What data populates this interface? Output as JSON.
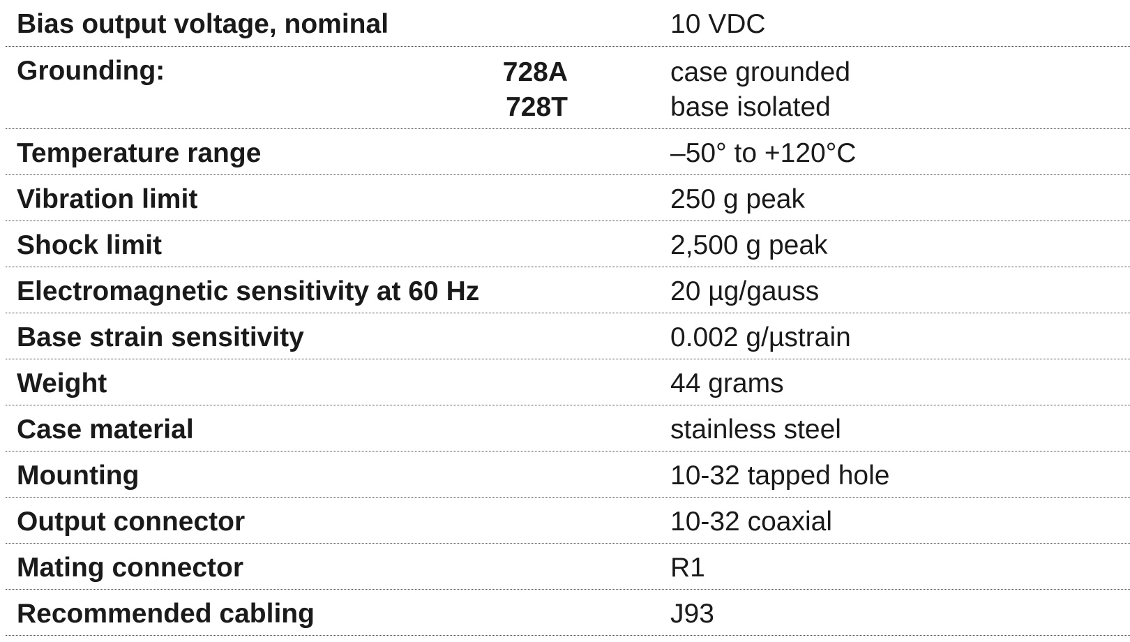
{
  "specs": {
    "rows": [
      {
        "label": "Bias output voltage, nominal",
        "value": "10 VDC"
      },
      {
        "label": "Grounding:",
        "models": [
          "728A",
          "728T"
        ],
        "values": [
          "case grounded",
          "base isolated"
        ]
      },
      {
        "label": "Temperature range",
        "value": "–50° to +120°C"
      },
      {
        "label": "Vibration limit",
        "value": "250 g peak"
      },
      {
        "label": "Shock limit",
        "value": "2,500 g peak"
      },
      {
        "label": "Electromagnetic sensitivity at 60 Hz",
        "value": "20 µg/gauss"
      },
      {
        "label": "Base strain sensitivity",
        "value": "0.002 g/µstrain"
      },
      {
        "label": "Weight",
        "value": "44 grams"
      },
      {
        "label": "Case material",
        "value": "stainless steel"
      },
      {
        "label": "Mounting",
        "value": "10-32 tapped hole"
      },
      {
        "label": "Output connector",
        "value": "10-32 coaxial"
      },
      {
        "label": "Mating connector",
        "value": "R1"
      },
      {
        "label": "Recommended cabling",
        "value": "J93"
      }
    ]
  }
}
